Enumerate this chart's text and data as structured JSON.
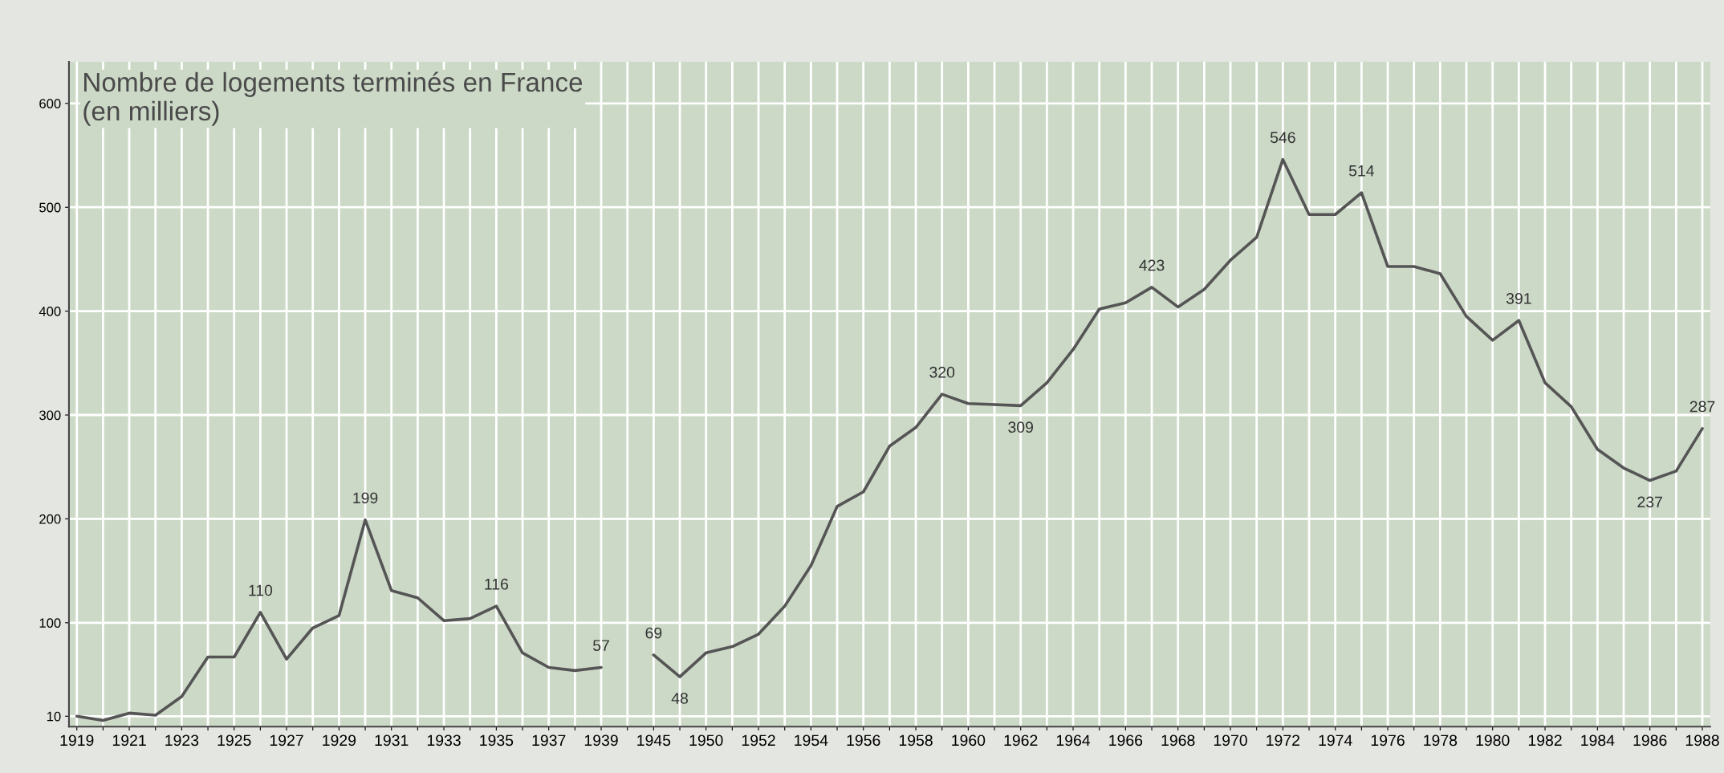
{
  "chart_data": {
    "type": "line",
    "title": "Nombre de logements terminés en France\n(en milliers)",
    "categories": [
      "1919",
      null,
      "1921",
      null,
      "1923",
      null,
      "1925",
      null,
      "1927",
      null,
      "1929",
      null,
      "1931",
      null,
      "1933",
      null,
      "1935",
      null,
      "1937",
      null,
      "1939",
      null,
      "1945",
      null,
      "1950",
      null,
      "1952",
      null,
      "1954",
      null,
      "1956",
      null,
      "1958",
      null,
      "1960",
      null,
      "1962",
      null,
      "1964",
      null,
      "1966",
      null,
      "1968",
      null,
      "1970",
      null,
      "1972",
      null,
      "1974",
      null,
      "1976",
      null,
      "1978",
      null,
      "1980",
      null,
      "1982",
      null,
      "1984",
      null,
      "1986",
      null,
      "1988"
    ],
    "values": [
      10,
      6,
      13,
      11,
      29,
      67,
      67,
      110,
      65,
      95,
      107,
      199,
      131,
      124,
      102,
      104,
      116,
      71,
      57,
      54,
      57,
      null,
      69,
      48,
      71,
      77,
      89,
      116,
      155,
      212,
      226,
      270,
      288,
      320,
      311,
      310,
      309,
      331,
      363,
      402,
      408,
      423,
      404,
      421,
      449,
      471,
      546,
      493,
      493,
      514,
      443,
      443,
      436,
      395,
      372,
      391,
      331,
      308,
      267,
      249,
      237,
      246,
      287
    ],
    "value_labels": [
      null,
      null,
      null,
      null,
      null,
      null,
      null,
      "110",
      null,
      null,
      null,
      "199",
      null,
      null,
      null,
      null,
      "116",
      null,
      null,
      null,
      "57",
      null,
      "69",
      "48",
      null,
      null,
      null,
      null,
      null,
      null,
      null,
      null,
      null,
      "320",
      null,
      null,
      "309",
      null,
      null,
      null,
      null,
      "423",
      null,
      null,
      null,
      null,
      "546",
      null,
      null,
      "514",
      null,
      null,
      null,
      null,
      null,
      "391",
      null,
      null,
      null,
      null,
      "237",
      null,
      "287"
    ],
    "color": "#555555",
    "ylim": [
      0,
      640
    ],
    "yticks": [
      10,
      100,
      200,
      300,
      400,
      500,
      600
    ],
    "grid": true
  }
}
